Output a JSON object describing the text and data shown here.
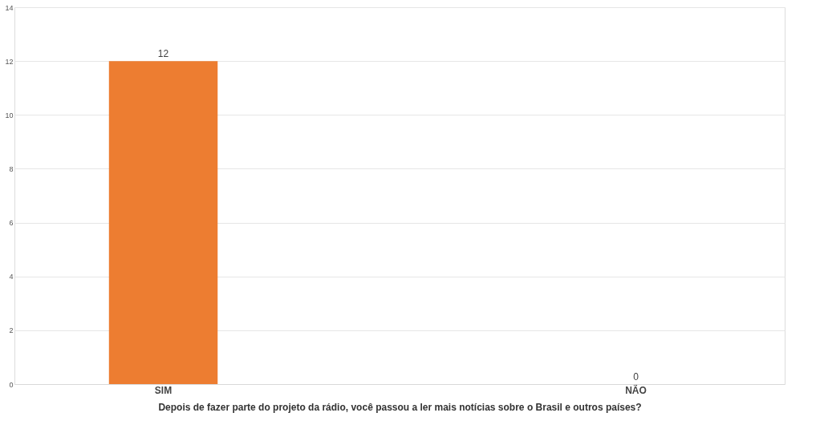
{
  "chart_data": {
    "type": "bar",
    "xlabel": "Depois de fazer parte do projeto da rádio, você passou a ler mais notícias sobre o Brasil e outros países?",
    "categories": [
      "SIM",
      "NÃO"
    ],
    "values": [
      12,
      0
    ],
    "color": "#ed7d31",
    "ylim": [
      0,
      14
    ],
    "yticks": [
      0,
      2,
      4,
      6,
      8,
      10,
      12,
      14
    ],
    "grid": "y",
    "data_labels": true
  }
}
